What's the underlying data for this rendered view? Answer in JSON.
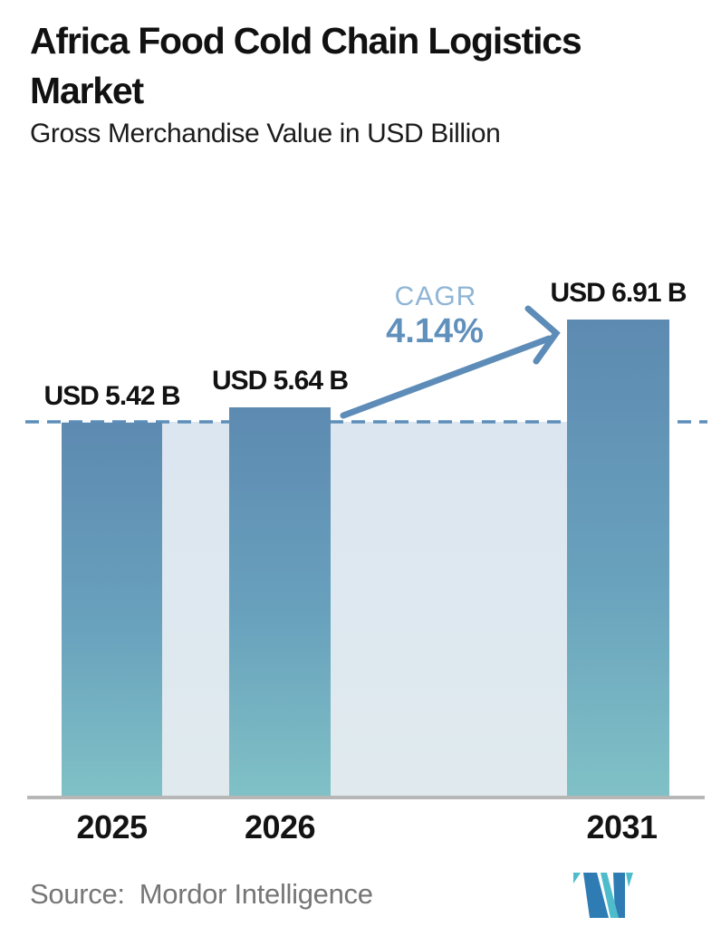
{
  "header": {
    "title": "Africa Food Cold Chain Logistics Market",
    "subtitle": "Gross Merchandise Value in USD Billion"
  },
  "chart_data": {
    "type": "bar",
    "title": "Africa Food Cold Chain Logistics Market",
    "subtitle_unit": "Gross Merchandise Value in USD Billion",
    "categories": [
      "2025",
      "2026",
      "2031"
    ],
    "values": [
      5.42,
      5.64,
      6.91
    ],
    "bar_labels": [
      "USD 5.42 B",
      "USD 5.64 B",
      "USD 6.91 B"
    ],
    "ylim": [
      0,
      7.3
    ],
    "grid": false,
    "reference_line": {
      "value": 5.42,
      "style": "dashed"
    },
    "annotations": {
      "cagr_label": "CAGR",
      "cagr_value": "4.14%",
      "arrow": "from 2026 bar to 2031 bar"
    }
  },
  "footer": {
    "source_label": "Source:",
    "source_value": "Mordor Intelligence",
    "logo_name": "mordor-intelligence-logo"
  },
  "colors": {
    "title": "#111111",
    "bar_top": "#5d8ab1",
    "bar_mid": "#69a2bd",
    "bar_bottom": "#80c1c6",
    "band_top": "#dbe6f1",
    "band_bottom": "#e0eaee",
    "dashed_line": "#5d8eb9",
    "arrow": "#5d8cb8",
    "cagr_label": "#8fb5d6",
    "cagr_value": "#6090bc",
    "axis_line": "#b7b7b7",
    "source": "#767676",
    "logo_blue": "#2e7cb3",
    "logo_teal": "#4fbccb"
  }
}
